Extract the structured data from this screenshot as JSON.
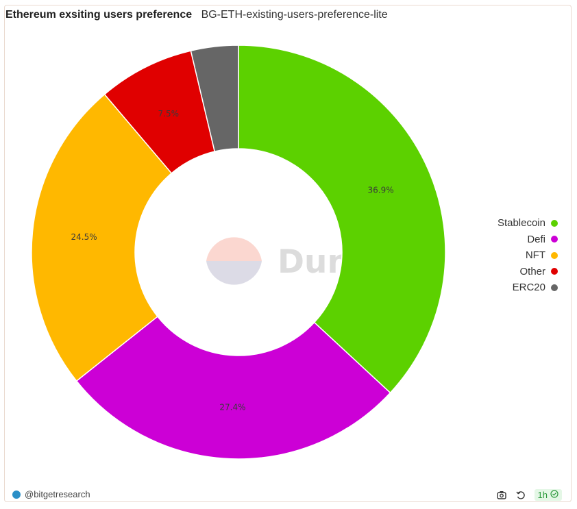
{
  "header": {
    "title": "Ethereum exsiting users preference",
    "subtitle": "BG-ETH-existing-users-preference-lite"
  },
  "chart_data": {
    "type": "pie",
    "donut": true,
    "categories": [
      "Stablecoin",
      "Defi",
      "NFT",
      "Other",
      "ERC20"
    ],
    "values": [
      36.9,
      27.4,
      24.5,
      7.5,
      3.7
    ],
    "labels": [
      "36.9%",
      "27.4%",
      "24.5%",
      "7.5%",
      ""
    ],
    "colors": [
      "#5cd100",
      "#cc00d6",
      "#ffb800",
      "#e00000",
      "#666666"
    ],
    "legend_position": "right"
  },
  "watermark": {
    "text": "Dune"
  },
  "footer": {
    "author": "@bitgetresearch",
    "refresh": "1h",
    "icons": [
      "camera-icon",
      "refresh-icon",
      "check-circle-icon"
    ]
  }
}
